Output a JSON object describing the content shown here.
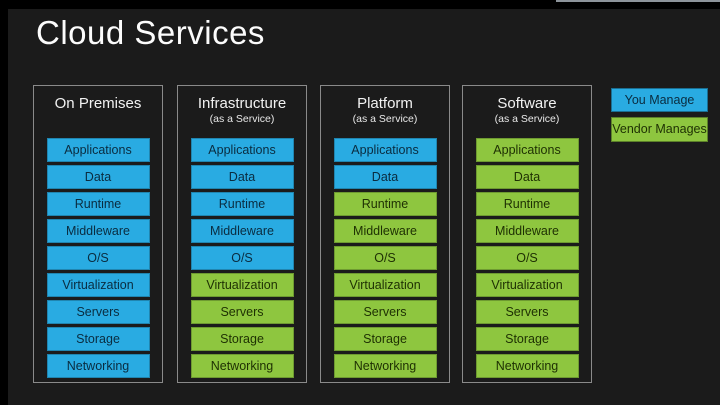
{
  "title": "Cloud Services",
  "colors": {
    "you_manage": "#29abe2",
    "vendor_manages": "#8ec63f"
  },
  "legend": {
    "items": [
      {
        "label": "You Manage",
        "color": "#29abe2",
        "meaning": "you"
      },
      {
        "label": "Vendor Manages",
        "color": "#8ec63f",
        "meaning": "vendor"
      }
    ]
  },
  "columns": [
    {
      "title": "On Premises",
      "subtitle": "",
      "rows": [
        {
          "label": "Applications",
          "managed_by": "you",
          "color": "#29abe2"
        },
        {
          "label": "Data",
          "managed_by": "you",
          "color": "#29abe2"
        },
        {
          "label": "Runtime",
          "managed_by": "you",
          "color": "#29abe2"
        },
        {
          "label": "Middleware",
          "managed_by": "you",
          "color": "#29abe2"
        },
        {
          "label": "O/S",
          "managed_by": "you",
          "color": "#29abe2"
        },
        {
          "label": "Virtualization",
          "managed_by": "you",
          "color": "#29abe2"
        },
        {
          "label": "Servers",
          "managed_by": "you",
          "color": "#29abe2"
        },
        {
          "label": "Storage",
          "managed_by": "you",
          "color": "#29abe2"
        },
        {
          "label": "Networking",
          "managed_by": "you",
          "color": "#29abe2"
        }
      ]
    },
    {
      "title": "Infrastructure",
      "subtitle": "(as a Service)",
      "rows": [
        {
          "label": "Applications",
          "managed_by": "you",
          "color": "#29abe2"
        },
        {
          "label": "Data",
          "managed_by": "you",
          "color": "#29abe2"
        },
        {
          "label": "Runtime",
          "managed_by": "you",
          "color": "#29abe2"
        },
        {
          "label": "Middleware",
          "managed_by": "you",
          "color": "#29abe2"
        },
        {
          "label": "O/S",
          "managed_by": "you",
          "color": "#29abe2"
        },
        {
          "label": "Virtualization",
          "managed_by": "vendor",
          "color": "#8ec63f"
        },
        {
          "label": "Servers",
          "managed_by": "vendor",
          "color": "#8ec63f"
        },
        {
          "label": "Storage",
          "managed_by": "vendor",
          "color": "#8ec63f"
        },
        {
          "label": "Networking",
          "managed_by": "vendor",
          "color": "#8ec63f"
        }
      ]
    },
    {
      "title": "Platform",
      "subtitle": "(as a Service)",
      "rows": [
        {
          "label": "Applications",
          "managed_by": "you",
          "color": "#29abe2"
        },
        {
          "label": "Data",
          "managed_by": "you",
          "color": "#29abe2"
        },
        {
          "label": "Runtime",
          "managed_by": "vendor",
          "color": "#8ec63f"
        },
        {
          "label": "Middleware",
          "managed_by": "vendor",
          "color": "#8ec63f"
        },
        {
          "label": "O/S",
          "managed_by": "vendor",
          "color": "#8ec63f"
        },
        {
          "label": "Virtualization",
          "managed_by": "vendor",
          "color": "#8ec63f"
        },
        {
          "label": "Servers",
          "managed_by": "vendor",
          "color": "#8ec63f"
        },
        {
          "label": "Storage",
          "managed_by": "vendor",
          "color": "#8ec63f"
        },
        {
          "label": "Networking",
          "managed_by": "vendor",
          "color": "#8ec63f"
        }
      ]
    },
    {
      "title": "Software",
      "subtitle": "(as a Service)",
      "rows": [
        {
          "label": "Applications",
          "managed_by": "vendor",
          "color": "#8ec63f"
        },
        {
          "label": "Data",
          "managed_by": "vendor",
          "color": "#8ec63f"
        },
        {
          "label": "Runtime",
          "managed_by": "vendor",
          "color": "#8ec63f"
        },
        {
          "label": "Middleware",
          "managed_by": "vendor",
          "color": "#8ec63f"
        },
        {
          "label": "O/S",
          "managed_by": "vendor",
          "color": "#8ec63f"
        },
        {
          "label": "Virtualization",
          "managed_by": "vendor",
          "color": "#8ec63f"
        },
        {
          "label": "Servers",
          "managed_by": "vendor",
          "color": "#8ec63f"
        },
        {
          "label": "Storage",
          "managed_by": "vendor",
          "color": "#8ec63f"
        },
        {
          "label": "Networking",
          "managed_by": "vendor",
          "color": "#8ec63f"
        }
      ]
    }
  ]
}
